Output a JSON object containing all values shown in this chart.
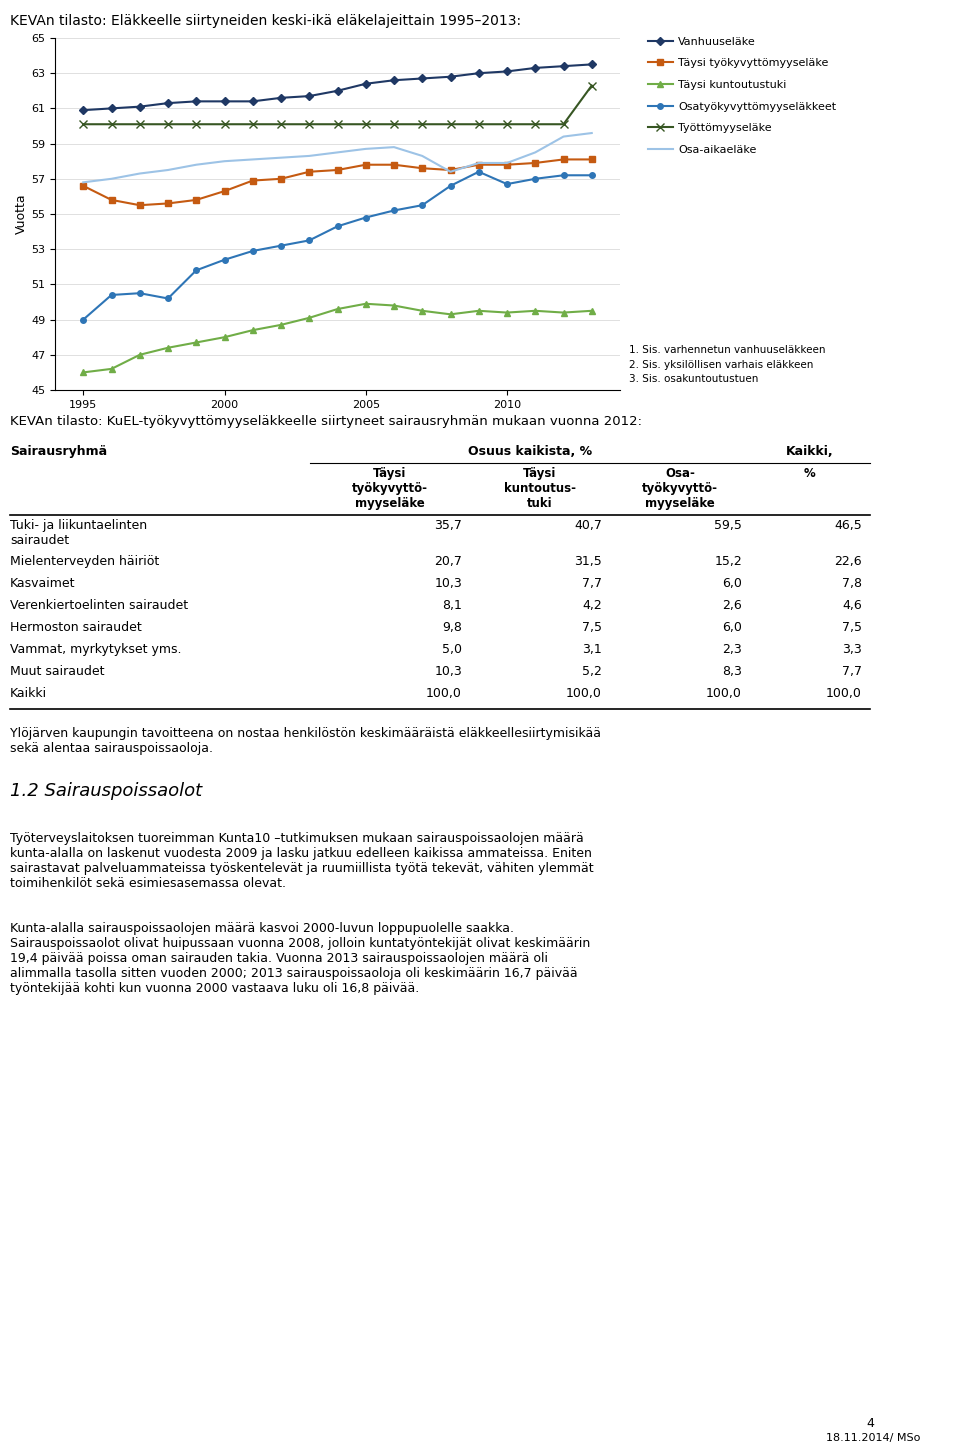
{
  "title_chart": "KEVAn tilasto: Eläkkeelle siirtyneiden keski-ikä eläkelajeittain 1995–2013:",
  "years": [
    1995,
    1996,
    1997,
    1998,
    1999,
    2000,
    2001,
    2002,
    2003,
    2004,
    2005,
    2006,
    2007,
    2008,
    2009,
    2010,
    2011,
    2012,
    2013
  ],
  "vanhuuselake": [
    60.9,
    61.0,
    61.1,
    61.3,
    61.4,
    61.4,
    61.4,
    61.6,
    61.7,
    62.0,
    62.4,
    62.6,
    62.7,
    62.8,
    63.0,
    63.1,
    63.3,
    63.4,
    63.5
  ],
  "taysi_tyokyvyttomyyselake": [
    56.6,
    55.8,
    55.5,
    55.6,
    55.8,
    56.3,
    56.9,
    57.0,
    57.4,
    57.5,
    57.8,
    57.8,
    57.6,
    57.5,
    57.8,
    57.8,
    57.9,
    58.1,
    58.1
  ],
  "taysi_kuntoutustuki": [
    46.0,
    46.2,
    47.0,
    47.4,
    47.7,
    48.0,
    48.4,
    48.7,
    49.1,
    49.6,
    49.9,
    49.8,
    49.5,
    49.3,
    49.5,
    49.4,
    49.5,
    49.4,
    49.5
  ],
  "osatyokyvyttomyyselakkeet": [
    49.0,
    50.4,
    50.5,
    50.2,
    51.8,
    52.4,
    52.9,
    53.2,
    53.5,
    54.3,
    54.8,
    55.2,
    55.5,
    56.6,
    57.4,
    56.7,
    57.0,
    57.2,
    57.2
  ],
  "tyottomyyselake": [
    60.1,
    60.1,
    60.1,
    60.1,
    60.1,
    60.1,
    60.1,
    60.1,
    60.1,
    60.1,
    60.1,
    60.1,
    60.1,
    60.1,
    60.1,
    60.1,
    60.1,
    60.1,
    62.3
  ],
  "osa_aikaelake": [
    56.8,
    57.0,
    57.3,
    57.5,
    57.8,
    58.0,
    58.1,
    58.2,
    58.3,
    58.5,
    58.7,
    58.8,
    58.3,
    57.4,
    57.9,
    57.9,
    58.5,
    59.4,
    59.6
  ],
  "color_vanhuus": "#1F3864",
  "color_taysi_tyok": "#C55A11",
  "color_taysi_kunt": "#70AD47",
  "color_osatyo": "#2E75B6",
  "color_tyottomyys": "#375623",
  "color_osa_aika": "#9DC3E6",
  "ylabel": "Vuotta",
  "ylim_min": 45,
  "ylim_max": 65,
  "yticks": [
    45,
    47,
    49,
    51,
    53,
    55,
    57,
    59,
    61,
    63,
    65
  ],
  "footnotes": [
    "1. Sis. varhennetun vanhuuseläkkeen",
    "2. Sis. yksilöllisen varhais eläkkeen",
    "3. Sis. osakuntoutustuen"
  ],
  "table_title": "KEVAn tilasto: KuEL-työkyvyttömyyseläkkeelle siirtyneet sairausryhmän mukaan vuonna 2012:",
  "table_col_headers_sub": [
    "Täysi\ntyökyvyttö-\nmyyseläke",
    "Täysi\nkuntoutus-\ntuki",
    "Osa-\ntyökyvyttö-\nmyyseläke",
    "%"
  ],
  "table_row_labels": [
    "Tuki- ja liikuntaelinten\nsairaudet",
    "Mielenterveyden häiriöt",
    "Kasvaimet",
    "Verenkiertoelinten sairaudet",
    "Hermoston sairaudet",
    "Vammat, myrkytykset yms.",
    "Muut sairaudet",
    "Kaikki"
  ],
  "table_data": [
    [
      35.7,
      40.7,
      59.5,
      46.5
    ],
    [
      20.7,
      31.5,
      15.2,
      22.6
    ],
    [
      10.3,
      7.7,
      6.0,
      7.8
    ],
    [
      8.1,
      4.2,
      2.6,
      4.6
    ],
    [
      9.8,
      7.5,
      6.0,
      7.5
    ],
    [
      5.0,
      3.1,
      2.3,
      3.3
    ],
    [
      10.3,
      5.2,
      8.3,
      7.7
    ],
    [
      100.0,
      100.0,
      100.0,
      100.0
    ]
  ],
  "para1": "Ylöjärven kaupungin tavoitteena on nostaa henkilöstön keskimääräistä eläkkeellesiirtymisikää\nsekä alentaa sairauspoissaoloja.",
  "section_heading": "1.2 Sairauspoissaolot",
  "para2": "Työterveyslaitoksen tuoreimman Kunta10 –tutkimuksen mukaan sairauspoissaolojen määrä\nkunta-alalla on laskenut vuodesta 2009 ja lasku jatkuu edelleen kaikissa ammateissa. Eniten\nsairastavat palveluammateissa työskentelevät ja ruumiillista työtä tekevät, vähiten ylemmät\ntoimihenkilöt sekä esimiesasemassa olevat.",
  "para3": "Kunta-alalla sairauspoissaolojen määrä kasvoi 2000-luvun loppupuolelle saakka.\nSairauspoissaolot olivat huipussaan vuonna 2008, jolloin kuntatyöntekijät olivat keskimäärin\n19,4 päivää poissa oman sairauden takia. Vuonna 2013 sairauspoissaolojen määrä oli\nalimmalla tasolla sitten vuoden 2000; 2013 sairauspoissaoloja oli keskimäärin 16,7 päivää\ntyöntekijää kohti kun vuonna 2000 vastaava luku oli 16,8 päivää.",
  "page_number": "4",
  "date_author": "18.11.2014/ MSo"
}
